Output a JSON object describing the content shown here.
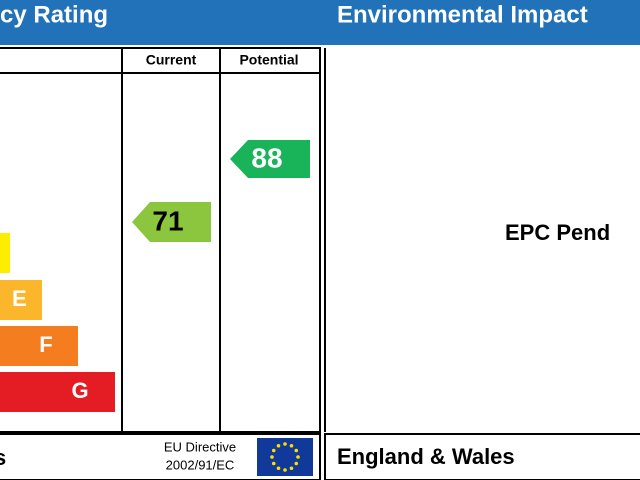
{
  "energy_panel": {
    "title": "cy Rating",
    "columns": [
      "Current",
      "Potential"
    ],
    "bands": [
      "E",
      "F",
      "G"
    ],
    "current": 71,
    "potential": 88,
    "footer": "s",
    "directive": [
      "EU Directive",
      "2002/91/EC"
    ]
  },
  "environment_panel": {
    "title": "Environmental Impact",
    "status": "EPC Pend",
    "footer": "England & Wales"
  }
}
